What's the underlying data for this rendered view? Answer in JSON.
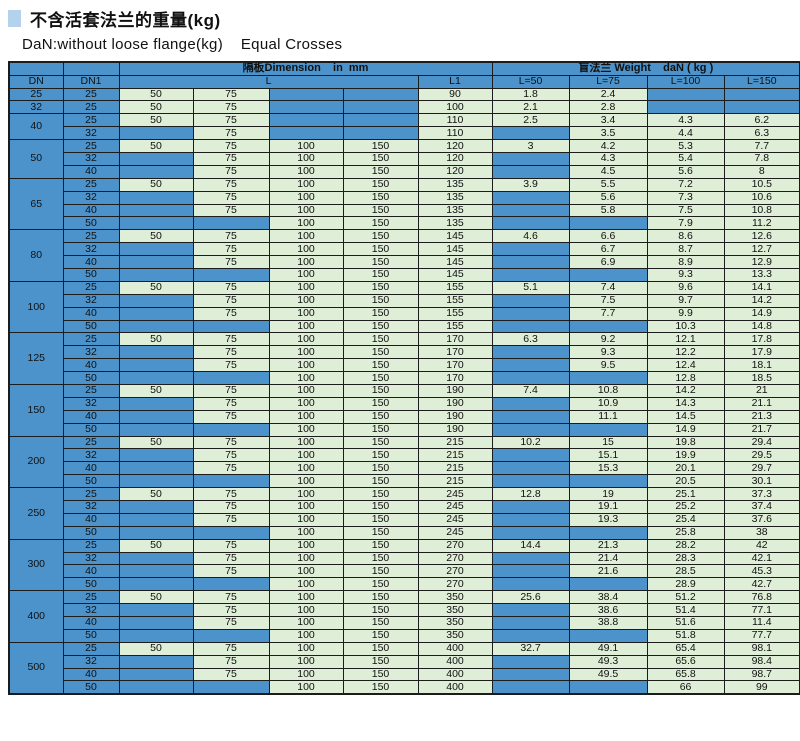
{
  "title": "不含活套法兰的重量(kg)",
  "subtitle": "DaN:without loose flange(kg)    Equal Crosses",
  "colors": {
    "header_and_blank_cell_blue": "#4c93cb",
    "data_cell_green": "#dfeed6",
    "title_square_blue": "#b5d2ec",
    "grid_border": "#1c1c1c"
  },
  "table": {
    "header": {
      "dimension_group": "隔板Dimension    in  mm",
      "weight_group": "盲法兰 Weight    daN ( kg )",
      "dn": "DN",
      "dn1": "DN1",
      "l": "L",
      "l1": "L1",
      "weight_cols": [
        "L=50",
        "L=75",
        "L=100",
        "L=150"
      ]
    },
    "groups": [
      {
        "dn": "25",
        "rows": [
          {
            "dn1": "25",
            "l": [
              "50",
              "75",
              "",
              ""
            ],
            "l1": "90",
            "w": [
              "1.8",
              "2.4",
              "",
              ""
            ]
          }
        ]
      },
      {
        "dn": "32",
        "rows": [
          {
            "dn1": "25",
            "l": [
              "50",
              "75",
              "",
              ""
            ],
            "l1": "100",
            "w": [
              "2.1",
              "2.8",
              "",
              ""
            ]
          }
        ]
      },
      {
        "dn": "40",
        "rows": [
          {
            "dn1": "25",
            "l": [
              "50",
              "75",
              "",
              ""
            ],
            "l1": "110",
            "w": [
              "2.5",
              "3.4",
              "4.3",
              "6.2"
            ]
          },
          {
            "dn1": "32",
            "l": [
              "",
              "75",
              "",
              ""
            ],
            "l1": "110",
            "w": [
              "",
              "3.5",
              "4.4",
              "6.3"
            ]
          }
        ]
      },
      {
        "dn": "50",
        "rows": [
          {
            "dn1": "25",
            "l": [
              "50",
              "75",
              "100",
              "150"
            ],
            "l1": "120",
            "w": [
              "3",
              "4.2",
              "5.3",
              "7.7"
            ]
          },
          {
            "dn1": "32",
            "l": [
              "",
              "75",
              "100",
              "150"
            ],
            "l1": "120",
            "w": [
              "",
              "4.3",
              "5.4",
              "7.8"
            ]
          },
          {
            "dn1": "40",
            "l": [
              "",
              "75",
              "100",
              "150"
            ],
            "l1": "120",
            "w": [
              "",
              "4.5",
              "5.6",
              "8"
            ]
          }
        ]
      },
      {
        "dn": "65",
        "rows": [
          {
            "dn1": "25",
            "l": [
              "50",
              "75",
              "100",
              "150"
            ],
            "l1": "135",
            "w": [
              "3.9",
              "5.5",
              "7.2",
              "10.5"
            ]
          },
          {
            "dn1": "32",
            "l": [
              "",
              "75",
              "100",
              "150"
            ],
            "l1": "135",
            "w": [
              "",
              "5.6",
              "7.3",
              "10.6"
            ]
          },
          {
            "dn1": "40",
            "l": [
              "",
              "75",
              "100",
              "150"
            ],
            "l1": "135",
            "w": [
              "",
              "5.8",
              "7.5",
              "10.8"
            ]
          },
          {
            "dn1": "50",
            "l": [
              "",
              "",
              "100",
              "150"
            ],
            "l1": "135",
            "w": [
              "",
              "",
              "7.9",
              "11.2"
            ]
          }
        ]
      },
      {
        "dn": "80",
        "rows": [
          {
            "dn1": "25",
            "l": [
              "50",
              "75",
              "100",
              "150"
            ],
            "l1": "145",
            "w": [
              "4.6",
              "6.6",
              "8.6",
              "12.6"
            ]
          },
          {
            "dn1": "32",
            "l": [
              "",
              "75",
              "100",
              "150"
            ],
            "l1": "145",
            "w": [
              "",
              "6.7",
              "8.7",
              "12.7"
            ]
          },
          {
            "dn1": "40",
            "l": [
              "",
              "75",
              "100",
              "150"
            ],
            "l1": "145",
            "w": [
              "",
              "6.9",
              "8.9",
              "12.9"
            ]
          },
          {
            "dn1": "50",
            "l": [
              "",
              "",
              "100",
              "150"
            ],
            "l1": "145",
            "w": [
              "",
              "",
              "9.3",
              "13.3"
            ]
          }
        ]
      },
      {
        "dn": "100",
        "rows": [
          {
            "dn1": "25",
            "l": [
              "50",
              "75",
              "100",
              "150"
            ],
            "l1": "155",
            "w": [
              "5.1",
              "7.4",
              "9.6",
              "14.1"
            ]
          },
          {
            "dn1": "32",
            "l": [
              "",
              "75",
              "100",
              "150"
            ],
            "l1": "155",
            "w": [
              "",
              "7.5",
              "9.7",
              "14.2"
            ]
          },
          {
            "dn1": "40",
            "l": [
              "",
              "75",
              "100",
              "150"
            ],
            "l1": "155",
            "w": [
              "",
              "7.7",
              "9.9",
              "14.9"
            ]
          },
          {
            "dn1": "50",
            "l": [
              "",
              "",
              "100",
              "150"
            ],
            "l1": "155",
            "w": [
              "",
              "",
              "10.3",
              "14.8"
            ]
          }
        ]
      },
      {
        "dn": "125",
        "rows": [
          {
            "dn1": "25",
            "l": [
              "50",
              "75",
              "100",
              "150"
            ],
            "l1": "170",
            "w": [
              "6.3",
              "9.2",
              "12.1",
              "17.8"
            ]
          },
          {
            "dn1": "32",
            "l": [
              "",
              "75",
              "100",
              "150"
            ],
            "l1": "170",
            "w": [
              "",
              "9.3",
              "12.2",
              "17.9"
            ]
          },
          {
            "dn1": "40",
            "l": [
              "",
              "75",
              "100",
              "150"
            ],
            "l1": "170",
            "w": [
              "",
              "9.5",
              "12.4",
              "18.1"
            ]
          },
          {
            "dn1": "50",
            "l": [
              "",
              "",
              "100",
              "150"
            ],
            "l1": "170",
            "w": [
              "",
              "",
              "12.8",
              "18.5"
            ]
          }
        ]
      },
      {
        "dn": "150",
        "rows": [
          {
            "dn1": "25",
            "l": [
              "50",
              "75",
              "100",
              "150"
            ],
            "l1": "190",
            "w": [
              "7.4",
              "10.8",
              "14.2",
              "21"
            ]
          },
          {
            "dn1": "32",
            "l": [
              "",
              "75",
              "100",
              "150"
            ],
            "l1": "190",
            "w": [
              "",
              "10.9",
              "14.3",
              "21.1"
            ]
          },
          {
            "dn1": "40",
            "l": [
              "",
              "75",
              "100",
              "150"
            ],
            "l1": "190",
            "w": [
              "",
              "11.1",
              "14.5",
              "21.3"
            ]
          },
          {
            "dn1": "50",
            "l": [
              "",
              "",
              "100",
              "150"
            ],
            "l1": "190",
            "w": [
              "",
              "",
              "14.9",
              "21.7"
            ]
          }
        ]
      },
      {
        "dn": "200",
        "rows": [
          {
            "dn1": "25",
            "l": [
              "50",
              "75",
              "100",
              "150"
            ],
            "l1": "215",
            "w": [
              "10.2",
              "15",
              "19.8",
              "29.4"
            ]
          },
          {
            "dn1": "32",
            "l": [
              "",
              "75",
              "100",
              "150"
            ],
            "l1": "215",
            "w": [
              "",
              "15.1",
              "19.9",
              "29.5"
            ]
          },
          {
            "dn1": "40",
            "l": [
              "",
              "75",
              "100",
              "150"
            ],
            "l1": "215",
            "w": [
              "",
              "15.3",
              "20.1",
              "29.7"
            ]
          },
          {
            "dn1": "50",
            "l": [
              "",
              "",
              "100",
              "150"
            ],
            "l1": "215",
            "w": [
              "",
              "",
              "20.5",
              "30.1"
            ]
          }
        ]
      },
      {
        "dn": "250",
        "rows": [
          {
            "dn1": "25",
            "l": [
              "50",
              "75",
              "100",
              "150"
            ],
            "l1": "245",
            "w": [
              "12.8",
              "19",
              "25.1",
              "37.3"
            ]
          },
          {
            "dn1": "32",
            "l": [
              "",
              "75",
              "100",
              "150"
            ],
            "l1": "245",
            "w": [
              "",
              "19.1",
              "25.2",
              "37.4"
            ]
          },
          {
            "dn1": "40",
            "l": [
              "",
              "75",
              "100",
              "150"
            ],
            "l1": "245",
            "w": [
              "",
              "19.3",
              "25.4",
              "37.6"
            ]
          },
          {
            "dn1": "50",
            "l": [
              "",
              "",
              "100",
              "150"
            ],
            "l1": "245",
            "w": [
              "",
              "",
              "25.8",
              "38"
            ]
          }
        ]
      },
      {
        "dn": "300",
        "rows": [
          {
            "dn1": "25",
            "l": [
              "50",
              "75",
              "100",
              "150"
            ],
            "l1": "270",
            "w": [
              "14.4",
              "21.3",
              "28.2",
              "42"
            ]
          },
          {
            "dn1": "32",
            "l": [
              "",
              "75",
              "100",
              "150"
            ],
            "l1": "270",
            "w": [
              "",
              "21.4",
              "28.3",
              "42.1"
            ]
          },
          {
            "dn1": "40",
            "l": [
              "",
              "75",
              "100",
              "150"
            ],
            "l1": "270",
            "w": [
              "",
              "21.6",
              "28.5",
              "45.3"
            ]
          },
          {
            "dn1": "50",
            "l": [
              "",
              "",
              "100",
              "150"
            ],
            "l1": "270",
            "w": [
              "",
              "",
              "28.9",
              "42.7"
            ]
          }
        ]
      },
      {
        "dn": "400",
        "rows": [
          {
            "dn1": "25",
            "l": [
              "50",
              "75",
              "100",
              "150"
            ],
            "l1": "350",
            "w": [
              "25.6",
              "38.4",
              "51.2",
              "76.8"
            ]
          },
          {
            "dn1": "32",
            "l": [
              "",
              "75",
              "100",
              "150"
            ],
            "l1": "350",
            "w": [
              "",
              "38.6",
              "51.4",
              "77.1"
            ]
          },
          {
            "dn1": "40",
            "l": [
              "",
              "75",
              "100",
              "150"
            ],
            "l1": "350",
            "w": [
              "",
              "38.8",
              "51.6",
              "11.4"
            ]
          },
          {
            "dn1": "50",
            "l": [
              "",
              "",
              "100",
              "150"
            ],
            "l1": "350",
            "w": [
              "",
              "",
              "51.8",
              "77.7"
            ]
          }
        ]
      },
      {
        "dn": "500",
        "rows": [
          {
            "dn1": "25",
            "l": [
              "50",
              "75",
              "100",
              "150"
            ],
            "l1": "400",
            "w": [
              "32.7",
              "49.1",
              "65.4",
              "98.1"
            ]
          },
          {
            "dn1": "32",
            "l": [
              "",
              "75",
              "100",
              "150"
            ],
            "l1": "400",
            "w": [
              "",
              "49.3",
              "65.6",
              "98.4"
            ]
          },
          {
            "dn1": "40",
            "l": [
              "",
              "75",
              "100",
              "150"
            ],
            "l1": "400",
            "w": [
              "",
              "49.5",
              "65.8",
              "98.7"
            ]
          },
          {
            "dn1": "50",
            "l": [
              "",
              "",
              "100",
              "150"
            ],
            "l1": "400",
            "w": [
              "",
              "",
              "66",
              "99"
            ]
          }
        ]
      }
    ]
  }
}
